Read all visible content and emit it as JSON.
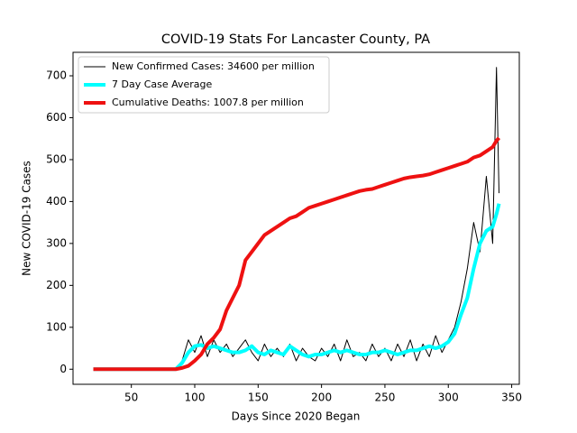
{
  "chart_data": {
    "type": "line",
    "title": "COVID-19 Stats For Lancaster County, PA",
    "x_label": "Days Since 2020 Began",
    "y_label": "New COVID-19 Cases",
    "x": [
      20,
      25,
      30,
      35,
      40,
      45,
      50,
      55,
      60,
      65,
      70,
      75,
      80,
      85,
      90,
      95,
      100,
      105,
      110,
      115,
      120,
      125,
      130,
      135,
      140,
      145,
      150,
      155,
      160,
      165,
      170,
      175,
      180,
      185,
      190,
      195,
      200,
      205,
      210,
      215,
      220,
      225,
      230,
      235,
      240,
      245,
      250,
      255,
      260,
      265,
      270,
      275,
      280,
      285,
      290,
      295,
      300,
      305,
      310,
      315,
      320,
      325,
      330,
      335,
      338,
      340
    ],
    "series": [
      {
        "name": "New Confirmed Cases: 34600 per million",
        "color": "#000000",
        "linewidth": 1,
        "values": [
          0,
          0,
          0,
          0,
          0,
          0,
          0,
          0,
          0,
          0,
          0,
          0,
          0,
          0,
          20,
          70,
          40,
          80,
          30,
          70,
          40,
          60,
          30,
          50,
          70,
          40,
          20,
          60,
          30,
          50,
          30,
          60,
          20,
          50,
          30,
          20,
          50,
          30,
          60,
          20,
          70,
          30,
          40,
          20,
          60,
          30,
          50,
          20,
          60,
          30,
          70,
          20,
          60,
          30,
          80,
          40,
          70,
          100,
          160,
          240,
          350,
          280,
          460,
          300,
          720,
          420
        ]
      },
      {
        "name": "7 Day Case Average",
        "color": "#00ffff",
        "linewidth": 4,
        "values": [
          0,
          0,
          0,
          0,
          0,
          0,
          0,
          0,
          0,
          0,
          0,
          0,
          0,
          0,
          15,
          40,
          55,
          58,
          50,
          55,
          50,
          45,
          40,
          40,
          45,
          55,
          40,
          35,
          45,
          40,
          35,
          55,
          45,
          35,
          30,
          35,
          35,
          40,
          45,
          40,
          45,
          40,
          35,
          35,
          40,
          40,
          45,
          40,
          35,
          40,
          45,
          45,
          50,
          55,
          50,
          55,
          65,
          85,
          130,
          170,
          240,
          300,
          330,
          340,
          370,
          395
        ]
      },
      {
        "name": "Cumulative Deaths: 1007.8 per million",
        "color": "#ee1111",
        "linewidth": 4,
        "values": [
          0,
          0,
          0,
          0,
          0,
          0,
          0,
          0,
          0,
          0,
          0,
          0,
          0,
          0,
          3,
          8,
          20,
          35,
          60,
          75,
          95,
          140,
          170,
          200,
          260,
          280,
          300,
          320,
          330,
          340,
          350,
          360,
          365,
          375,
          385,
          390,
          395,
          400,
          405,
          410,
          415,
          420,
          425,
          428,
          430,
          435,
          440,
          445,
          450,
          455,
          458,
          460,
          462,
          465,
          470,
          475,
          480,
          485,
          490,
          495,
          505,
          510,
          520,
          530,
          545,
          552
        ]
      }
    ],
    "xlim": [
      4,
      356
    ],
    "ylim": [
      -36,
      756
    ],
    "xticks": [
      50,
      100,
      150,
      200,
      250,
      300,
      350
    ],
    "yticks": [
      0,
      100,
      200,
      300,
      400,
      500,
      600,
      700
    ],
    "legend": "upper left"
  }
}
